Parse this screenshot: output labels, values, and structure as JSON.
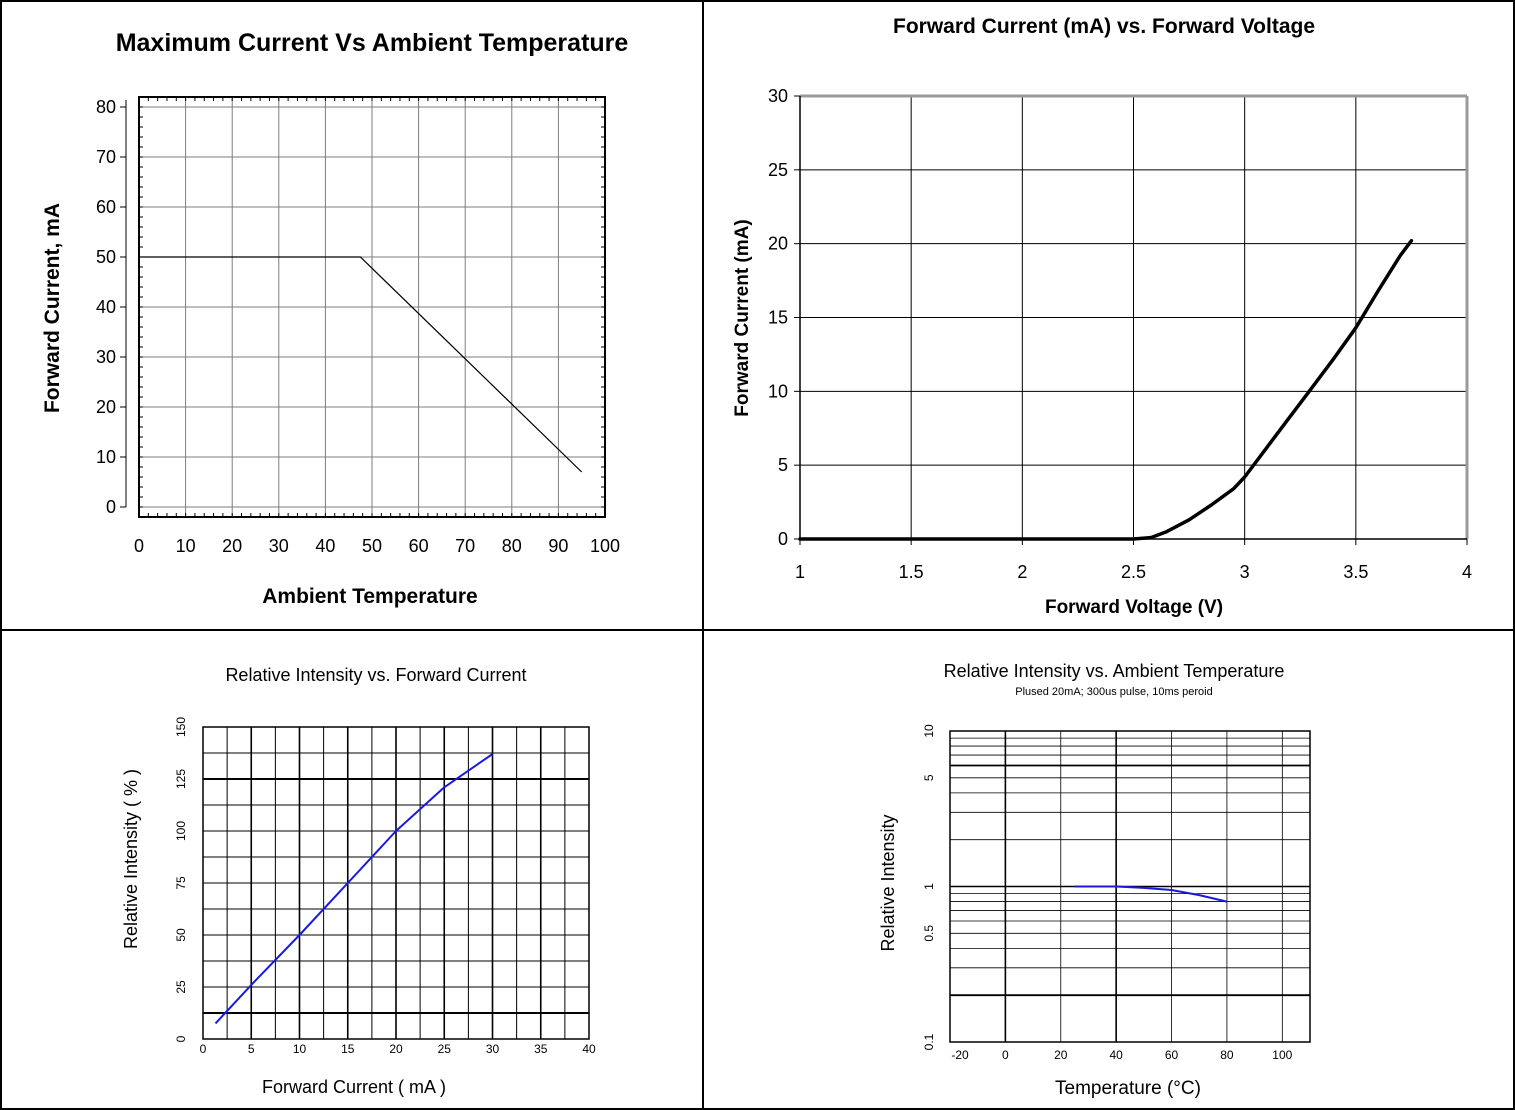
{
  "chart_data": [
    {
      "type": "line",
      "title": "Maximum Current Vs Ambient Temperature",
      "xlabel": "Ambient Temperature",
      "ylabel": "Forward Current, mA",
      "xlim": [
        0,
        100
      ],
      "ylim": [
        0,
        80
      ],
      "xticks": [
        "0",
        "10",
        "20",
        "30",
        "40",
        "50",
        "60",
        "70",
        "80",
        "90",
        "100"
      ],
      "yticks": [
        "0",
        "10",
        "20",
        "30",
        "40",
        "50",
        "60",
        "70",
        "80"
      ],
      "grid": true,
      "series": [
        {
          "x": [
            0,
            47.5,
            95
          ],
          "y": [
            50,
            50,
            7
          ]
        }
      ]
    },
    {
      "type": "line",
      "title": "Forward Current (mA) vs. Forward Voltage",
      "xlabel": "Forward Voltage (V)",
      "ylabel": "Forward Current (mA)",
      "xlim": [
        1,
        4
      ],
      "ylim": [
        0,
        30
      ],
      "xticks": [
        "1",
        "1.5",
        "2",
        "2.5",
        "3",
        "3.5",
        "4"
      ],
      "yticks": [
        "0",
        "5",
        "10",
        "15",
        "20",
        "25",
        "30"
      ],
      "grid": true,
      "series": [
        {
          "x": [
            1,
            2,
            2.5,
            2.58,
            2.65,
            2.75,
            2.85,
            2.95,
            3.0,
            3.1,
            3.2,
            3.3,
            3.4,
            3.5,
            3.6,
            3.7,
            3.75
          ],
          "y": [
            0,
            0,
            0,
            0.1,
            0.5,
            1.3,
            2.3,
            3.4,
            4.2,
            6.2,
            8.2,
            10.2,
            12.2,
            14.3,
            16.8,
            19.2,
            20.2
          ]
        }
      ]
    },
    {
      "type": "line",
      "title": "Relative Intensity vs. Forward Current",
      "xlabel": "Forward Current ( mA )",
      "ylabel": "Relative Intensity ( % )",
      "xlim": [
        0,
        40
      ],
      "ylim": [
        0,
        150
      ],
      "xticks": [
        "0",
        "5",
        "10",
        "15",
        "20",
        "25",
        "30",
        "35",
        "40"
      ],
      "yticks": [
        "0",
        "25",
        "50",
        "75",
        "100",
        "125",
        "150"
      ],
      "grid": true,
      "series": [
        {
          "color": "#1a1adf",
          "x": [
            1.3,
            5,
            10,
            15,
            20,
            25,
            30
          ],
          "y": [
            7.5,
            26,
            50,
            75,
            100,
            121,
            137
          ]
        }
      ]
    },
    {
      "type": "line",
      "title": "Relative Intensity vs. Ambient Temperature",
      "subtitle": "Plused 20mA; 300us pulse, 10ms peroid",
      "xlabel": "Temperature (°C)",
      "ylabel": "Relative Intensity",
      "xlim": [
        -20,
        110
      ],
      "ylim": [
        0.1,
        10
      ],
      "yscale": "log",
      "xticks": [
        "-20",
        "0",
        "20",
        "40",
        "60",
        "80",
        "100"
      ],
      "yticks": [
        "0.1",
        "0.5",
        "1",
        "5",
        "10"
      ],
      "grid": true,
      "series": [
        {
          "color": "#1a1adf",
          "x": [
            25,
            40,
            50,
            60,
            70,
            80
          ],
          "y": [
            1.0,
            1.0,
            0.98,
            0.95,
            0.88,
            0.8
          ]
        }
      ]
    }
  ]
}
